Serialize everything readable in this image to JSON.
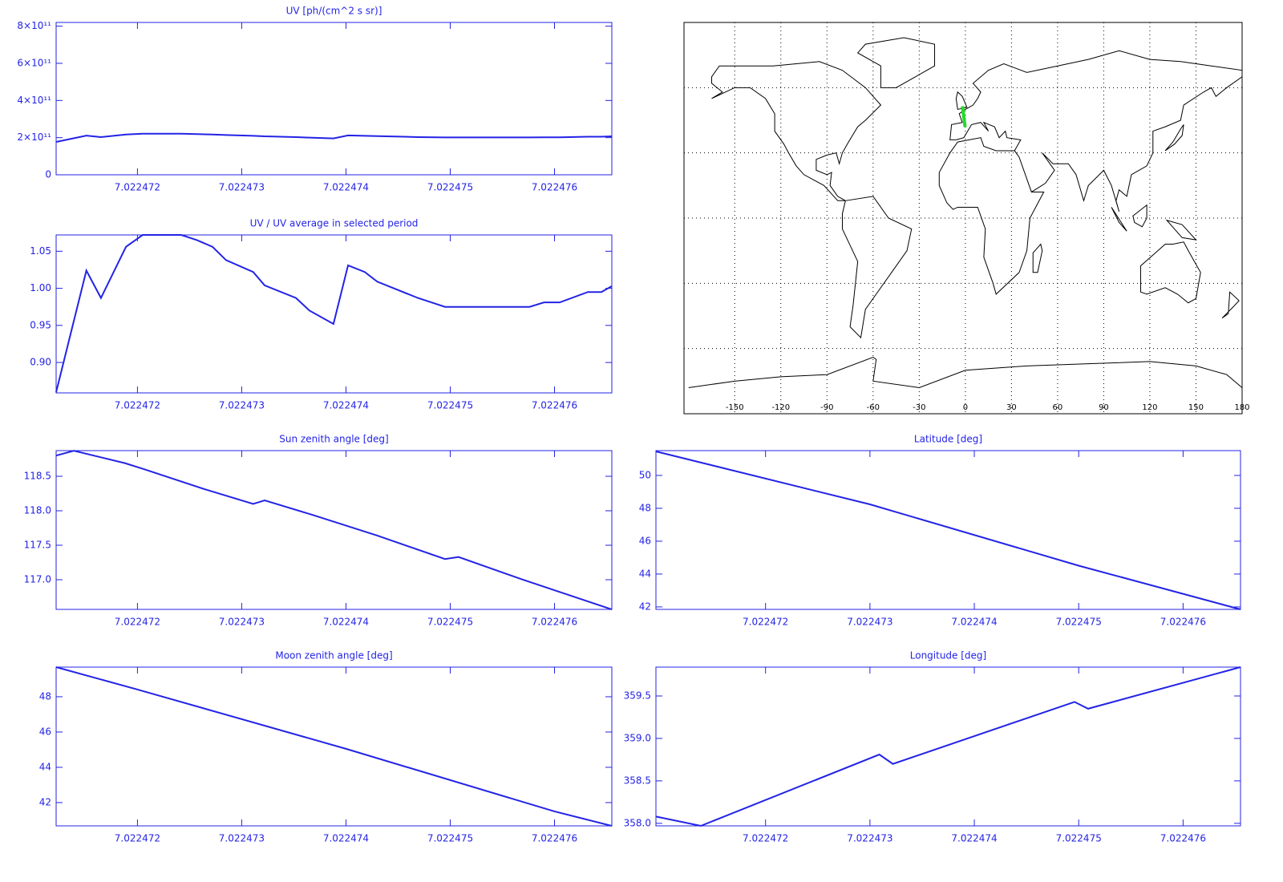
{
  "chart_data": [
    {
      "type": "line",
      "title": "UV [ph/(cm^2 s sr)]",
      "color": "#2323e6",
      "x": [
        7.02247122,
        7.02247151,
        7.02247165,
        7.02247189,
        7.02247205,
        7.02247242,
        7.02247257,
        7.02247272,
        7.02247285,
        7.02247311,
        7.02247322,
        7.02247352,
        7.02247365,
        7.02247388,
        7.02247402,
        7.02247418,
        7.0224743,
        7.02247469,
        7.02247495,
        7.02247576,
        7.0224759,
        7.02247605,
        7.02247632,
        7.02247645,
        7.02247655
      ],
      "values": [
        177000000000.0,
        211000000000.0,
        203000000000.0,
        217000000000.0,
        221000000000.0,
        221000000000.0,
        219000000000.0,
        217000000000.0,
        214000000000.0,
        210000000000.0,
        207000000000.0,
        203000000000.0,
        200000000000.0,
        196000000000.0,
        212000000000.0,
        210000000000.0,
        208000000000.0,
        203000000000.0,
        201000000000.0,
        201000000000.0,
        202000000000.0,
        202000000000.0,
        205000000000.0,
        205000000000.0,
        207000000000.0
      ],
      "xlim": [
        7.02247122,
        7.02247655
      ],
      "xticks": [
        7.022472,
        7.022473,
        7.022474,
        7.022475,
        7.022476
      ],
      "ylim": [
        0,
        820000000000.0
      ],
      "yticks": [
        0,
        {
          "value": 200000000000.0,
          "label": "2×10¹¹"
        },
        {
          "value": 400000000000.0,
          "label": "4×10¹¹"
        },
        {
          "value": 600000000000.0,
          "label": "6×10¹¹"
        },
        {
          "value": 800000000000.0,
          "label": "8×10¹¹"
        }
      ]
    },
    {
      "type": "map",
      "xlim": [
        -183,
        180
      ],
      "ylim": [
        -90,
        90
      ],
      "xticks": [
        -150,
        -120,
        -90,
        -60,
        -30,
        0,
        30,
        60,
        90,
        120,
        150,
        180
      ],
      "ygrid": [
        -60,
        -30,
        0,
        30,
        60
      ],
      "track": {
        "color": "#22dd22",
        "lon": [
          -1.92,
          -0.16
        ],
        "lat": [
          51.46,
          41.85
        ]
      }
    },
    {
      "type": "line",
      "title": "UV / UV average in selected period",
      "color": "#2323e6",
      "x": [
        7.02247122,
        7.02247151,
        7.02247165,
        7.02247189,
        7.02247205,
        7.02247242,
        7.02247257,
        7.02247272,
        7.02247285,
        7.02247311,
        7.02247322,
        7.02247352,
        7.02247365,
        7.02247388,
        7.02247402,
        7.02247418,
        7.0224743,
        7.02247469,
        7.02247495,
        7.02247576,
        7.0224759,
        7.02247605,
        7.02247632,
        7.02247645,
        7.02247655
      ],
      "values": [
        0.86,
        1.024,
        0.987,
        1.056,
        1.072,
        1.072,
        1.065,
        1.056,
        1.038,
        1.022,
        1.004,
        0.987,
        0.97,
        0.952,
        1.031,
        1.022,
        1.009,
        0.987,
        0.975,
        0.975,
        0.981,
        0.981,
        0.995,
        0.995,
        1.003
      ],
      "xlim": [
        7.02247122,
        7.02247655
      ],
      "xticks": [
        7.022472,
        7.022473,
        7.022474,
        7.022475,
        7.022476
      ],
      "ylim": [
        0.859,
        1.072
      ],
      "yticks": [
        {
          "value": 0.9,
          "label": "0.90"
        },
        0.95,
        {
          "value": 1,
          "label": "1.00"
        },
        1.05
      ]
    },
    {
      "type": "line",
      "title": "Sun zenith angle [deg]",
      "color": "#2323e6",
      "x": [
        7.02247122,
        7.02247139,
        7.02247188,
        7.02247207,
        7.02247265,
        7.02247311,
        7.02247322,
        7.02247368,
        7.0224743,
        7.02247495,
        7.02247508,
        7.02247568,
        7.02247655
      ],
      "values": [
        118.8,
        118.87,
        118.69,
        118.6,
        118.31,
        118.1,
        118.15,
        117.94,
        117.64,
        117.3,
        117.33,
        117.01,
        116.57
      ],
      "xlim": [
        7.02247122,
        7.02247655
      ],
      "xticks": [
        7.022472,
        7.022473,
        7.022474,
        7.022475,
        7.022476
      ],
      "ylim": [
        116.57,
        118.872
      ],
      "yticks": [
        {
          "value": 117,
          "label": "117.0"
        },
        117.5,
        {
          "value": 118,
          "label": "118.0"
        },
        118.5
      ]
    },
    {
      "type": "line",
      "title": "Latitude [deg]",
      "color": "#2323e6",
      "x": [
        7.02247095,
        7.022473,
        7.022475,
        7.02247655
      ],
      "values": [
        51.46,
        48.24,
        44.51,
        41.85
      ],
      "xlim": [
        7.02247095,
        7.02247655
      ],
      "xticks": [
        7.022472,
        7.022473,
        7.022474,
        7.022475,
        7.022476
      ],
      "ylim": [
        41.85,
        51.51
      ],
      "yticks": [
        42,
        44,
        46,
        48,
        50
      ]
    },
    {
      "type": "line",
      "title": "Moon zenith angle [deg]",
      "color": "#2323e6",
      "x": [
        7.02247122,
        7.022472,
        7.022474,
        7.022476,
        7.02247655
      ],
      "values": [
        49.68,
        48.41,
        45.05,
        41.5,
        40.68
      ],
      "xlim": [
        7.02247122,
        7.02247655
      ],
      "xticks": [
        7.022472,
        7.022473,
        7.022474,
        7.022475,
        7.022476
      ],
      "ylim": [
        40.68,
        49.68
      ],
      "yticks": [
        42,
        44,
        46,
        48
      ]
    },
    {
      "type": "line",
      "title": "Longitude [deg]",
      "color": "#2323e6",
      "x": [
        7.02247095,
        7.02247138,
        7.02247309,
        7.02247322,
        7.02247496,
        7.02247509,
        7.02247655
      ],
      "values": [
        358.08,
        357.97,
        358.81,
        358.7,
        359.43,
        359.35,
        359.84
      ],
      "xlim": [
        7.02247095,
        7.02247655
      ],
      "xticks": [
        7.022472,
        7.022473,
        7.022474,
        7.022475,
        7.022476
      ],
      "ylim": [
        357.97,
        359.84
      ],
      "yticks": [
        {
          "value": 358,
          "label": "358.0"
        },
        358.5,
        {
          "value": 359,
          "label": "359.0"
        },
        359.5
      ]
    }
  ]
}
